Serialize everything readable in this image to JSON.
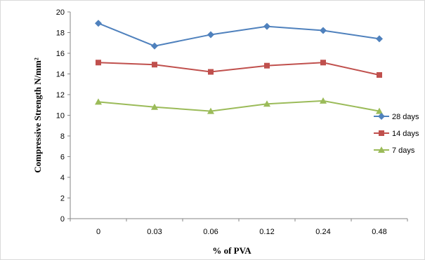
{
  "chart_data": {
    "type": "line",
    "title": "",
    "xlabel": "% of PVA",
    "ylabel": "Compressive  Strength N/mm²",
    "categories": [
      "0",
      "0.03",
      "0.06",
      "0.12",
      "0.24",
      "0.48"
    ],
    "ylim": [
      0,
      20
    ],
    "yticks": [
      0,
      2,
      4,
      6,
      8,
      10,
      12,
      14,
      16,
      18,
      20
    ],
    "grid": false,
    "legend_position": "right",
    "series": [
      {
        "name": "28 days",
        "color": "#4F81BD",
        "marker": "diamond",
        "values": [
          18.9,
          16.7,
          17.8,
          18.6,
          18.2,
          17.4
        ]
      },
      {
        "name": "14 days",
        "color": "#C0504D",
        "marker": "square",
        "values": [
          15.1,
          14.9,
          14.2,
          14.8,
          15.1,
          13.9
        ]
      },
      {
        "name": "7 days",
        "color": "#9BBB59",
        "marker": "triangle",
        "values": [
          11.3,
          10.8,
          10.4,
          11.1,
          11.4,
          10.4
        ]
      }
    ]
  }
}
